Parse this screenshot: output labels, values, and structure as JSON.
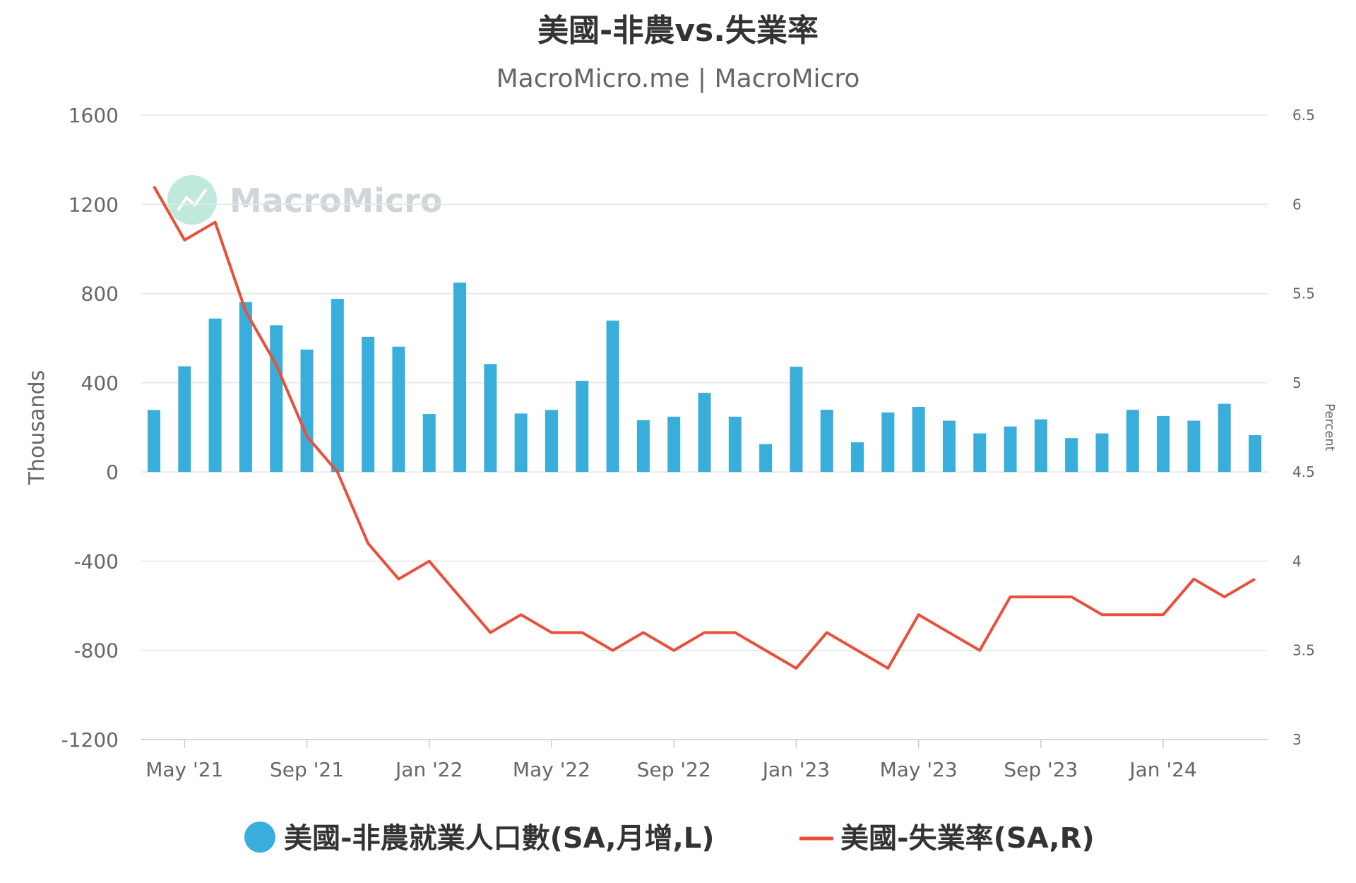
{
  "chart_data": {
    "type": "bar+line",
    "title": "美國-非農vs.失業率",
    "subtitle": "MacroMicro.me | MacroMicro",
    "watermark": "MacroMicro",
    "ylabel_left": "Thousands",
    "ylabel_right": "Percent",
    "ylim_left": [
      -1200,
      1600
    ],
    "ylim_right": [
      3,
      6.5
    ],
    "yticks_left": [
      1600,
      1200,
      800,
      400,
      0,
      -400,
      -800,
      -1200
    ],
    "yticks_right": [
      6.5,
      6,
      5.5,
      5,
      4.5,
      4,
      3.5,
      3
    ],
    "x_tick_labels": [
      "May '21",
      "Sep '21",
      "Jan '22",
      "May '22",
      "Sep '22",
      "Jan '23",
      "May '23",
      "Sep '23",
      "Jan '24"
    ],
    "x": [
      "2021-04",
      "2021-05",
      "2021-06",
      "2021-07",
      "2021-08",
      "2021-09",
      "2021-10",
      "2021-11",
      "2021-12",
      "2022-01",
      "2022-02",
      "2022-03",
      "2022-04",
      "2022-05",
      "2022-06",
      "2022-07",
      "2022-08",
      "2022-09",
      "2022-10",
      "2022-11",
      "2022-12",
      "2023-01",
      "2023-02",
      "2023-03",
      "2023-04",
      "2023-05",
      "2023-06",
      "2023-07",
      "2023-08",
      "2023-09",
      "2023-10",
      "2023-11",
      "2023-12",
      "2024-01",
      "2024-02",
      "2024-03",
      "2024-04"
    ],
    "grid": true,
    "legend_position": "bottom",
    "series": [
      {
        "name": "美國-非農就業人口數(SA,月增,L)",
        "type": "bar",
        "axis": "left",
        "color": "#3aaedb",
        "values": [
          278,
          474,
          688,
          762,
          658,
          549,
          776,
          606,
          562,
          260,
          849,
          484,
          262,
          278,
          409,
          679,
          232,
          248,
          355,
          248,
          125,
          472,
          279,
          133,
          267,
          292,
          230,
          173,
          204,
          236,
          152,
          173,
          279,
          251,
          230,
          306,
          165
        ]
      },
      {
        "name": "美國-失業率(SA,R)",
        "type": "line",
        "axis": "right",
        "color": "#e8503a",
        "values": [
          6.1,
          5.8,
          5.9,
          5.4,
          5.1,
          4.7,
          4.5,
          4.1,
          3.9,
          4.0,
          3.8,
          3.6,
          3.7,
          3.6,
          3.6,
          3.5,
          3.6,
          3.5,
          3.6,
          3.6,
          3.5,
          3.4,
          3.6,
          3.5,
          3.4,
          3.7,
          3.6,
          3.5,
          3.8,
          3.8,
          3.8,
          3.7,
          3.7,
          3.7,
          3.9,
          3.8,
          3.9
        ]
      }
    ]
  },
  "colors": {
    "bar": "#3aaedb",
    "line": "#e8503a",
    "grid": "#e6e6e6",
    "text": "#666666",
    "title": "#333333",
    "watermark_circle": "#bfe9dc"
  }
}
